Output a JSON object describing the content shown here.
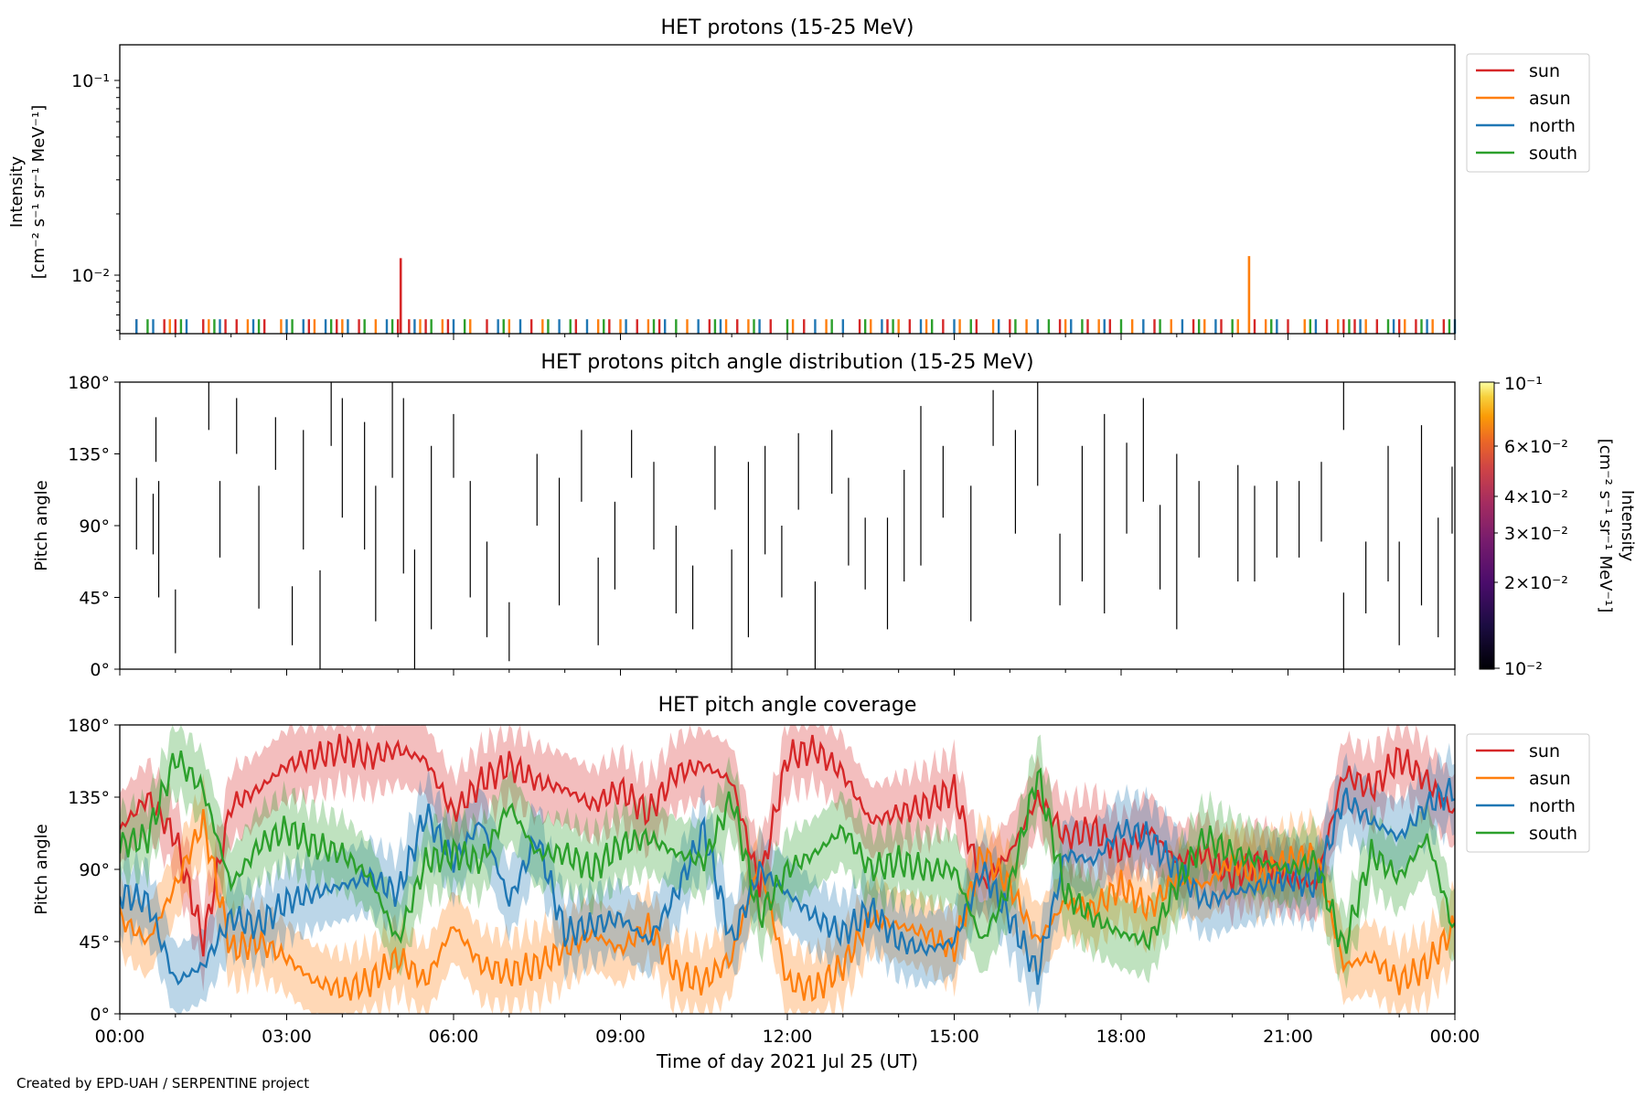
{
  "footer": "Created by EPD-UAH / SERPENTINE project",
  "xlabel": "Time of day 2021 Jul 25 (UT)",
  "x_ticks": [
    "00:00",
    "03:00",
    "06:00",
    "09:00",
    "12:00",
    "15:00",
    "18:00",
    "21:00",
    "00:00"
  ],
  "colors": {
    "sun": "#d62728",
    "asun": "#ff7f0e",
    "north": "#1f77b4",
    "south": "#2ca02c"
  },
  "panels": [
    {
      "id": "intensity",
      "title": "HET protons (15-25 MeV)",
      "ylabel_line1": "Intensity",
      "ylabel_line2": "[cm⁻² s⁻¹ sr⁻¹ MeV⁻¹]",
      "y_ticks": [
        "10⁻¹",
        "10⁻²"
      ]
    },
    {
      "id": "pad",
      "title": "HET protons pitch angle distribution (15-25 MeV)",
      "ylabel": "Pitch angle",
      "y_ticks": [
        "180°",
        "135°",
        "90°",
        "45°",
        "0°"
      ]
    },
    {
      "id": "coverage",
      "title": "HET pitch angle coverage",
      "ylabel": "Pitch angle",
      "y_ticks": [
        "180°",
        "135°",
        "90°",
        "45°",
        "0°"
      ]
    }
  ],
  "legend": [
    "sun",
    "asun",
    "north",
    "south"
  ],
  "colorbar": {
    "label_line1": "Intensity",
    "label_line2": "[cm⁻² s⁻¹ sr⁻¹ MeV⁻¹]",
    "ticks": [
      "10⁻¹",
      "6×10⁻²",
      "4×10⁻²",
      "3×10⁻²",
      "2×10⁻²",
      "10⁻²"
    ]
  },
  "chart_data": [
    {
      "type": "line",
      "title": "HET protons (15-25 MeV)",
      "ylabel": "Intensity [cm⁻² s⁻¹ sr⁻¹ MeV⁻¹]",
      "xlabel": "",
      "y_scale": "log",
      "ylim": [
        0.0048,
        0.15
      ],
      "xlim_hours": [
        0,
        24
      ],
      "legend_position": "outside-right-top",
      "baseline_spike_value": 0.0057,
      "series": [
        {
          "name": "sun",
          "spikes_hours": [
            0.3,
            0.8,
            1.0,
            1.5,
            1.9,
            2.1,
            2.6,
            3.4,
            3.9,
            4.3,
            5.0,
            5.2,
            5.5,
            5.9,
            6.6,
            7.4,
            8.2,
            8.8,
            9.3,
            9.7,
            10.6,
            11.1,
            11.7,
            12.3,
            13.3,
            13.8,
            14.2,
            14.8,
            15.4,
            16.0,
            16.9,
            17.4,
            17.8,
            18.6,
            19.3,
            19.8,
            20.4,
            21.0,
            21.7,
            22.0,
            22.2,
            22.6,
            23.0,
            23.3,
            23.8
          ],
          "peaks": [
            {
              "hour": 5.05,
              "value": 0.0118
            }
          ]
        },
        {
          "name": "asun",
          "spikes_hours": [
            0.9,
            1.6,
            2.3,
            2.9,
            3.5,
            4.0,
            4.6,
            5.4,
            5.8,
            6.3,
            7.0,
            7.6,
            8.6,
            9.0,
            9.5,
            10.2,
            10.9,
            11.3,
            12.1,
            12.7,
            13.5,
            14.0,
            14.5,
            15.1,
            15.7,
            16.3,
            17.0,
            17.6,
            18.2,
            18.9,
            19.5,
            20.1,
            20.6,
            21.3,
            21.9,
            22.4,
            23.1,
            23.6
          ],
          "peaks": [
            {
              "hour": 20.3,
              "value": 0.0121
            }
          ]
        },
        {
          "name": "north",
          "spikes_hours": [
            0.3,
            0.6,
            1.2,
            1.8,
            2.4,
            3.0,
            3.3,
            3.7,
            4.1,
            4.8,
            5.3,
            6.0,
            6.8,
            7.2,
            7.9,
            8.4,
            9.1,
            9.8,
            10.4,
            10.8,
            11.5,
            12.5,
            13.0,
            13.7,
            14.4,
            15.0,
            15.8,
            16.5,
            17.1,
            17.7,
            18.4,
            19.1,
            19.7,
            20.8,
            21.5,
            22.3,
            22.9,
            23.5,
            24.0
          ]
        },
        {
          "name": "south",
          "spikes_hours": [
            0.5,
            1.1,
            1.7,
            2.5,
            3.1,
            3.8,
            4.4,
            4.9,
            5.6,
            6.2,
            6.9,
            7.7,
            8.1,
            8.7,
            9.6,
            10.0,
            10.7,
            11.4,
            12.0,
            12.8,
            13.4,
            13.9,
            14.6,
            15.3,
            16.1,
            16.7,
            17.3,
            18.0,
            18.7,
            19.4,
            20.0,
            20.7,
            21.4,
            22.1,
            22.8,
            23.4,
            23.9
          ]
        }
      ]
    },
    {
      "type": "heatmap",
      "title": "HET protons pitch angle distribution (15-25 MeV)",
      "ylabel": "Pitch angle",
      "xlabel": "",
      "ylim": [
        0,
        180
      ],
      "xlim_hours": [
        0,
        24
      ],
      "colorbar": {
        "label": "Intensity [cm⁻² s⁻¹ sr⁻¹ MeV⁻¹]",
        "scale": "log",
        "range": [
          0.01,
          0.1
        ],
        "colormap": "inferno"
      },
      "segments": [
        [
          0.3,
          75,
          120
        ],
        [
          0.6,
          72,
          110
        ],
        [
          0.65,
          130,
          158
        ],
        [
          0.7,
          45,
          118
        ],
        [
          1.0,
          10,
          50
        ],
        [
          1.6,
          150,
          180
        ],
        [
          1.8,
          70,
          118
        ],
        [
          2.1,
          135,
          170
        ],
        [
          2.5,
          38,
          115
        ],
        [
          2.8,
          125,
          158
        ],
        [
          3.1,
          15,
          52
        ],
        [
          3.3,
          75,
          150
        ],
        [
          3.6,
          0,
          62
        ],
        [
          3.8,
          140,
          180
        ],
        [
          4.0,
          95,
          170
        ],
        [
          4.4,
          75,
          155
        ],
        [
          4.6,
          30,
          115
        ],
        [
          4.9,
          120,
          180
        ],
        [
          5.1,
          60,
          170
        ],
        [
          5.3,
          0,
          75
        ],
        [
          5.6,
          25,
          140
        ],
        [
          6.0,
          120,
          160
        ],
        [
          6.3,
          45,
          118
        ],
        [
          6.6,
          20,
          80
        ],
        [
          7.0,
          5,
          42
        ],
        [
          7.5,
          90,
          135
        ],
        [
          7.9,
          40,
          120
        ],
        [
          8.3,
          105,
          150
        ],
        [
          8.6,
          15,
          70
        ],
        [
          8.9,
          50,
          105
        ],
        [
          9.2,
          120,
          150
        ],
        [
          9.6,
          75,
          130
        ],
        [
          10.0,
          35,
          90
        ],
        [
          10.3,
          25,
          65
        ],
        [
          10.7,
          100,
          140
        ],
        [
          11.0,
          0,
          75
        ],
        [
          11.3,
          20,
          130
        ],
        [
          11.6,
          72,
          140
        ],
        [
          11.9,
          45,
          90
        ],
        [
          12.2,
          100,
          148
        ],
        [
          12.5,
          0,
          55
        ],
        [
          12.8,
          110,
          150
        ],
        [
          13.1,
          65,
          120
        ],
        [
          13.4,
          50,
          95
        ],
        [
          13.8,
          25,
          95
        ],
        [
          14.1,
          55,
          125
        ],
        [
          14.4,
          65,
          165
        ],
        [
          14.8,
          95,
          140
        ],
        [
          15.3,
          30,
          115
        ],
        [
          15.7,
          140,
          175
        ],
        [
          16.1,
          85,
          150
        ],
        [
          16.5,
          115,
          180
        ],
        [
          16.9,
          40,
          85
        ],
        [
          17.3,
          55,
          140
        ],
        [
          17.7,
          35,
          160
        ],
        [
          18.1,
          85,
          142
        ],
        [
          18.4,
          105,
          170
        ],
        [
          18.7,
          50,
          103
        ],
        [
          19.0,
          25,
          135
        ],
        [
          19.4,
          70,
          118
        ],
        [
          20.1,
          55,
          128
        ],
        [
          20.4,
          55,
          115
        ],
        [
          20.8,
          70,
          118
        ],
        [
          21.2,
          70,
          118
        ],
        [
          21.6,
          80,
          130
        ],
        [
          22.0,
          0,
          48
        ],
        [
          22.0,
          150,
          180
        ],
        [
          22.4,
          35,
          80
        ],
        [
          22.8,
          55,
          140
        ],
        [
          23.0,
          15,
          80
        ],
        [
          23.4,
          40,
          153
        ],
        [
          23.7,
          20,
          95
        ],
        [
          23.95,
          85,
          127
        ]
      ]
    },
    {
      "type": "area",
      "title": "HET pitch angle coverage",
      "xlabel": "Time of day 2021 Jul 25 (UT)",
      "ylabel": "Pitch angle",
      "ylim": [
        0,
        180
      ],
      "xlim_hours": [
        0,
        24
      ],
      "legend_position": "outside-right-top",
      "band_halfwidth_deg": 22,
      "series": [
        {
          "name": "sun",
          "x_hours": [
            0,
            0.5,
            1,
            1.5,
            2,
            2.5,
            3,
            3.5,
            4,
            4.5,
            5,
            5.5,
            6,
            6.5,
            7,
            7.5,
            8,
            8.5,
            9,
            9.5,
            10,
            10.5,
            11,
            11.5,
            12,
            12.5,
            13,
            13.5,
            14,
            14.5,
            15,
            15.5,
            16,
            16.5,
            17,
            17.5,
            18,
            18.5,
            19,
            19.5,
            20,
            20.5,
            21,
            21.5,
            22,
            22.5,
            23,
            23.5,
            24
          ],
          "values": [
            115,
            135,
            110,
            45,
            130,
            140,
            155,
            160,
            165,
            160,
            165,
            158,
            125,
            145,
            155,
            145,
            140,
            130,
            140,
            125,
            150,
            155,
            145,
            80,
            160,
            165,
            150,
            120,
            125,
            130,
            140,
            80,
            100,
            135,
            110,
            115,
            100,
            115,
            95,
            100,
            85,
            95,
            85,
            80,
            150,
            140,
            160,
            145,
            125
          ]
        },
        {
          "name": "asun",
          "x_hours": [
            0,
            0.5,
            1,
            1.5,
            2,
            2.5,
            3,
            3.5,
            4,
            4.5,
            5,
            5.5,
            6,
            6.5,
            7,
            7.5,
            8,
            8.5,
            9,
            9.5,
            10,
            10.5,
            11,
            11.5,
            12,
            12.5,
            13,
            13.5,
            14,
            14.5,
            15,
            15.5,
            16,
            16.5,
            17,
            17.5,
            18,
            18.5,
            19,
            19.5,
            20,
            20.5,
            21,
            21.5,
            22,
            22.5,
            23,
            23.5,
            24
          ],
          "values": [
            60,
            45,
            80,
            120,
            40,
            45,
            35,
            20,
            15,
            20,
            35,
            20,
            55,
            30,
            25,
            30,
            40,
            50,
            40,
            55,
            25,
            20,
            35,
            95,
            20,
            15,
            30,
            60,
            55,
            50,
            40,
            100,
            80,
            45,
            70,
            65,
            80,
            65,
            85,
            80,
            95,
            85,
            95,
            100,
            30,
            35,
            20,
            30,
            55
          ]
        },
        {
          "name": "north",
          "x_hours": [
            0,
            0.5,
            1,
            1.5,
            2,
            2.5,
            3,
            3.5,
            4,
            4.5,
            5,
            5.5,
            6,
            6.5,
            7,
            7.5,
            8,
            8.5,
            9,
            9.5,
            10,
            10.5,
            11,
            11.5,
            12,
            12.5,
            13,
            13.5,
            14,
            14.5,
            15,
            15.5,
            16,
            16.5,
            17,
            17.5,
            18,
            18.5,
            19,
            19.5,
            20,
            20.5,
            21,
            21.5,
            22,
            22.5,
            23,
            23.5,
            24
          ],
          "values": [
            75,
            70,
            20,
            30,
            60,
            55,
            70,
            75,
            80,
            85,
            75,
            125,
            95,
            120,
            70,
            110,
            50,
            55,
            60,
            45,
            75,
            115,
            45,
            90,
            75,
            60,
            50,
            65,
            45,
            40,
            45,
            90,
            60,
            25,
            100,
            95,
            115,
            110,
            90,
            70,
            75,
            80,
            85,
            80,
            135,
            120,
            110,
            130,
            140
          ]
        },
        {
          "name": "south",
          "x_hours": [
            0,
            0.5,
            1,
            1.5,
            2,
            2.5,
            3,
            3.5,
            4,
            4.5,
            5,
            5.5,
            6,
            6.5,
            7,
            7.5,
            8,
            8.5,
            9,
            9.5,
            10,
            10.5,
            11,
            11.5,
            12,
            12.5,
            13,
            13.5,
            14,
            14.5,
            15,
            15.5,
            16,
            16.5,
            17,
            17.5,
            18,
            18.5,
            19,
            19.5,
            20,
            20.5,
            21,
            21.5,
            22,
            22.5,
            23,
            23.5,
            24
          ],
          "values": [
            105,
            110,
            160,
            140,
            80,
            105,
            115,
            105,
            100,
            85,
            45,
            95,
            100,
            95,
            130,
            100,
            100,
            90,
            105,
            110,
            100,
            95,
            135,
            60,
            90,
            100,
            115,
            90,
            95,
            90,
            90,
            45,
            80,
            150,
            75,
            60,
            50,
            45,
            80,
            110,
            100,
            95,
            90,
            95,
            40,
            100,
            85,
            110,
            50
          ]
        }
      ]
    }
  ]
}
